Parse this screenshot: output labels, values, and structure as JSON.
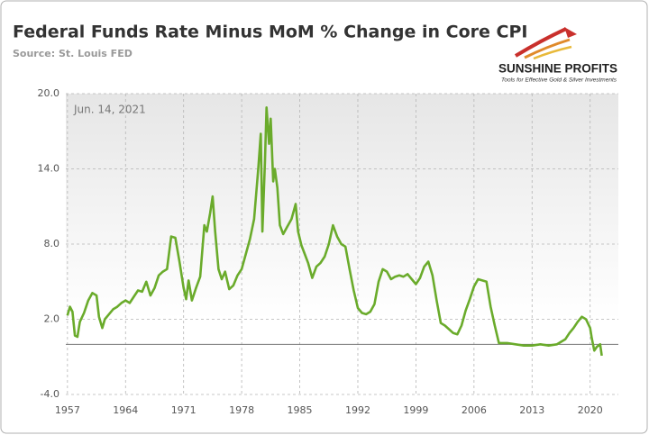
{
  "chart_data": {
    "type": "line",
    "title": "Federal Funds Rate Minus MoM % Change in Core CPI",
    "subtitle": "Source: St. Louis FED",
    "annotation": "Jun. 14, 2021",
    "logo_name": "SUNSHINE PROFITS",
    "logo_tagline": "Tools for Effective Gold & Silver Investments",
    "xlim": [
      1956.8,
      2023.4
    ],
    "xticks": [
      1957,
      1964,
      1971,
      1978,
      1985,
      1992,
      1999,
      2006,
      2013,
      2020
    ],
    "ylim": [
      -4,
      20
    ],
    "yticks": [
      {
        "value": -4,
        "label": "-4.0"
      },
      {
        "value": 2,
        "label": "2.0"
      },
      {
        "value": 8,
        "label": "8.0"
      },
      {
        "value": 14,
        "label": "14.0"
      },
      {
        "value": 20,
        "label": "20.0"
      }
    ],
    "grid": true,
    "series": [
      {
        "color": "#6aab2b",
        "x": [
          1957.0,
          1957.3,
          1957.6,
          1957.9,
          1958.2,
          1958.5,
          1959.0,
          1959.5,
          1960.0,
          1960.5,
          1960.8,
          1961.2,
          1961.5,
          1962.0,
          1962.5,
          1963.0,
          1963.5,
          1964.0,
          1964.5,
          1965.0,
          1965.5,
          1966.0,
          1966.5,
          1967.0,
          1967.5,
          1968.0,
          1968.5,
          1969.0,
          1969.5,
          1970.0,
          1970.5,
          1971.0,
          1971.3,
          1971.6,
          1972.0,
          1972.5,
          1973.0,
          1973.5,
          1973.8,
          1974.2,
          1974.5,
          1974.8,
          1975.2,
          1975.6,
          1976.0,
          1976.5,
          1977.0,
          1977.5,
          1978.0,
          1978.5,
          1979.0,
          1979.5,
          1980.0,
          1980.3,
          1980.5,
          1980.8,
          1981.0,
          1981.3,
          1981.5,
          1981.8,
          1982.0,
          1982.3,
          1982.6,
          1983.0,
          1983.5,
          1984.0,
          1984.5,
          1984.8,
          1985.2,
          1985.6,
          1986.0,
          1986.5,
          1987.0,
          1987.5,
          1988.0,
          1988.5,
          1989.0,
          1989.5,
          1990.0,
          1990.5,
          1991.0,
          1991.5,
          1992.0,
          1992.5,
          1993.0,
          1993.5,
          1994.0,
          1994.5,
          1995.0,
          1995.5,
          1996.0,
          1996.5,
          1997.0,
          1997.5,
          1998.0,
          1998.5,
          1999.0,
          1999.5,
          2000.0,
          2000.5,
          2001.0,
          2001.5,
          2002.0,
          2002.5,
          2003.0,
          2003.5,
          2004.0,
          2004.5,
          2005.0,
          2005.5,
          2006.0,
          2006.5,
          2007.0,
          2007.5,
          2008.0,
          2008.5,
          2009.0,
          2010.0,
          2011.0,
          2012.0,
          2013.0,
          2014.0,
          2015.0,
          2016.0,
          2017.0,
          2017.5,
          2018.0,
          2018.5,
          2019.0,
          2019.5,
          2020.0,
          2020.2,
          2020.5,
          2020.8,
          2021.2,
          2021.4
        ],
        "values": [
          2.3,
          3.0,
          2.6,
          0.7,
          0.6,
          1.8,
          2.5,
          3.5,
          4.1,
          3.9,
          2.2,
          1.3,
          2.0,
          2.4,
          2.8,
          3.0,
          3.3,
          3.5,
          3.3,
          3.8,
          4.3,
          4.2,
          5.0,
          3.9,
          4.5,
          5.5,
          5.8,
          6.0,
          8.6,
          8.5,
          6.6,
          4.5,
          3.6,
          5.1,
          3.5,
          4.5,
          5.4,
          9.5,
          9.0,
          10.5,
          11.8,
          9.0,
          6.0,
          5.2,
          5.8,
          4.4,
          4.7,
          5.5,
          6.0,
          7.2,
          8.4,
          10.0,
          14.0,
          16.8,
          9.0,
          14.5,
          18.9,
          16.0,
          18.0,
          13.0,
          14.0,
          12.5,
          9.5,
          8.8,
          9.4,
          10.0,
          11.2,
          9.0,
          7.9,
          7.2,
          6.5,
          5.3,
          6.2,
          6.5,
          7.0,
          8.0,
          9.5,
          8.6,
          8.0,
          7.8,
          6.0,
          4.3,
          2.9,
          2.5,
          2.4,
          2.6,
          3.2,
          5.0,
          6.0,
          5.8,
          5.2,
          5.4,
          5.5,
          5.4,
          5.6,
          5.2,
          4.8,
          5.3,
          6.2,
          6.6,
          5.5,
          3.5,
          1.7,
          1.5,
          1.2,
          0.9,
          0.8,
          1.5,
          2.7,
          3.6,
          4.6,
          5.2,
          5.1,
          5.0,
          3.0,
          1.5,
          0.1,
          0.1,
          0.0,
          -0.1,
          -0.1,
          0.0,
          -0.1,
          0.0,
          0.4,
          0.9,
          1.3,
          1.8,
          2.2,
          2.0,
          1.3,
          0.5,
          -0.5,
          -0.2,
          0.0,
          -0.9
        ]
      }
    ]
  }
}
